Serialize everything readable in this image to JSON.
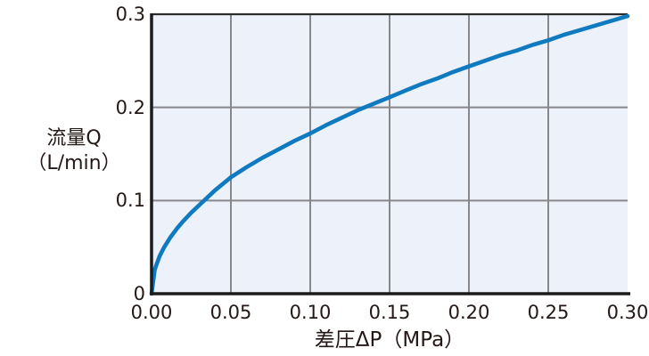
{
  "chart_data": {
    "type": "line",
    "title": "",
    "xlabel": "差圧ΔP（MPa）",
    "ylabel": "流量Q（L/min）",
    "ylabel_lines": [
      "流量Q",
      "（L/min）"
    ],
    "xlim": [
      0,
      0.3
    ],
    "ylim": [
      0,
      0.3
    ],
    "x_ticks": [
      0,
      0.05,
      0.1,
      0.15,
      0.2,
      0.25,
      0.3
    ],
    "x_tick_labels": [
      "0.00",
      "0.05",
      "0.10",
      "0.15",
      "0.20",
      "0.25",
      "0.30"
    ],
    "y_ticks": [
      0,
      0.1,
      0.2,
      0.3
    ],
    "y_tick_labels": [
      "0",
      "0.1",
      "0.2",
      "0.3"
    ],
    "grid": true,
    "legend_position": "none",
    "series": [
      {
        "points": [
          [
            0.0,
            0.0
          ],
          [
            0.002,
            0.026
          ],
          [
            0.005,
            0.04
          ],
          [
            0.008,
            0.05
          ],
          [
            0.012,
            0.061
          ],
          [
            0.016,
            0.07
          ],
          [
            0.02,
            0.078
          ],
          [
            0.025,
            0.087
          ],
          [
            0.03,
            0.095
          ],
          [
            0.035,
            0.103
          ],
          [
            0.04,
            0.111
          ],
          [
            0.045,
            0.118
          ],
          [
            0.05,
            0.125
          ],
          [
            0.06,
            0.136
          ],
          [
            0.07,
            0.146
          ],
          [
            0.08,
            0.155
          ],
          [
            0.09,
            0.164
          ],
          [
            0.1,
            0.172
          ],
          [
            0.11,
            0.181
          ],
          [
            0.12,
            0.189
          ],
          [
            0.13,
            0.197
          ],
          [
            0.14,
            0.204
          ],
          [
            0.15,
            0.211
          ],
          [
            0.16,
            0.218
          ],
          [
            0.17,
            0.225
          ],
          [
            0.18,
            0.231
          ],
          [
            0.19,
            0.238
          ],
          [
            0.2,
            0.244
          ],
          [
            0.21,
            0.25
          ],
          [
            0.22,
            0.256
          ],
          [
            0.23,
            0.261
          ],
          [
            0.24,
            0.267
          ],
          [
            0.25,
            0.272
          ],
          [
            0.26,
            0.278
          ],
          [
            0.27,
            0.283
          ],
          [
            0.28,
            0.288
          ],
          [
            0.29,
            0.293
          ],
          [
            0.3,
            0.298
          ]
        ]
      }
    ],
    "colors": {
      "curve": "#0f7ac0",
      "plot_bg": "#edf1f9",
      "grid": "#88888c",
      "axis": "#1c1c1c",
      "frame_top": "#2d2d2d",
      "text": "#231815"
    }
  }
}
